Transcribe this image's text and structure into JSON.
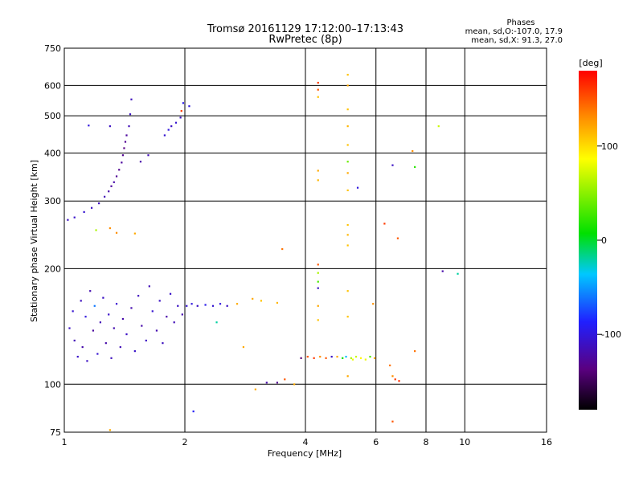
{
  "title_line1": "Tromsø 20161129 17:12:00–17:13:43",
  "title_line2": "RwPretec (8p)",
  "phases_box": {
    "heading": "Phases",
    "line_o": "mean, sd,O:-107.0, 17.9",
    "line_x": "mean, sd,X:  91.3, 27.0"
  },
  "colorbar": {
    "label": "[deg]",
    "min": -180,
    "max": 180,
    "ticks": [
      {
        "value": 100,
        "label": "100"
      },
      {
        "value": 0,
        "label": "0"
      },
      {
        "value": -100,
        "label": "-100"
      }
    ],
    "colormap": "rainbow black-purple-blue-cyan-green-yellow-red"
  },
  "chart_data": {
    "type": "scatter",
    "xlabel": "Frequency [MHz]",
    "ylabel": "Stationary phase Virtual Height [km]",
    "xscale": "log2",
    "yscale": "log",
    "xlim": [
      1,
      16
    ],
    "ylim": [
      75,
      750
    ],
    "xticks": [
      {
        "value": 1,
        "label": "1"
      },
      {
        "value": 2,
        "label": "2"
      },
      {
        "value": 4,
        "label": "4"
      },
      {
        "value": 6,
        "label": "6"
      },
      {
        "value": 8,
        "label": "8"
      },
      {
        "value": 10,
        "label": "10"
      },
      {
        "value": 16,
        "label": "16"
      }
    ],
    "yticks": [
      {
        "value": 75,
        "label": "75"
      },
      {
        "value": 100,
        "label": "100"
      },
      {
        "value": 200,
        "label": "200"
      },
      {
        "value": 300,
        "label": "300"
      },
      {
        "value": 400,
        "label": "400"
      },
      {
        "value": 500,
        "label": "500"
      },
      {
        "value": 600,
        "label": "600"
      },
      {
        "value": 750,
        "label": "750"
      }
    ],
    "grid": true,
    "point_color_encodes": "phase [deg]",
    "series": [
      {
        "values": [
          {
            "x": 1.02,
            "y": 268,
            "phase": -110
          },
          {
            "x": 1.06,
            "y": 272,
            "phase": -108
          },
          {
            "x": 1.12,
            "y": 281,
            "phase": -105
          },
          {
            "x": 1.17,
            "y": 288,
            "phase": -110
          },
          {
            "x": 1.22,
            "y": 296,
            "phase": -112
          },
          {
            "x": 1.26,
            "y": 308,
            "phase": -115
          },
          {
            "x": 1.29,
            "y": 318,
            "phase": -120
          },
          {
            "x": 1.31,
            "y": 328,
            "phase": -125
          },
          {
            "x": 1.33,
            "y": 336,
            "phase": -120
          },
          {
            "x": 1.35,
            "y": 348,
            "phase": -128
          },
          {
            "x": 1.37,
            "y": 362,
            "phase": -130
          },
          {
            "x": 1.39,
            "y": 378,
            "phase": -125
          },
          {
            "x": 1.4,
            "y": 395,
            "phase": -130
          },
          {
            "x": 1.41,
            "y": 412,
            "phase": -135
          },
          {
            "x": 1.42,
            "y": 428,
            "phase": -130
          },
          {
            "x": 1.43,
            "y": 445,
            "phase": -125
          },
          {
            "x": 1.45,
            "y": 470,
            "phase": -115
          },
          {
            "x": 1.46,
            "y": 505,
            "phase": -110
          },
          {
            "x": 1.47,
            "y": 552,
            "phase": -112
          },
          {
            "x": 1.15,
            "y": 472,
            "phase": -100
          },
          {
            "x": 1.3,
            "y": 470,
            "phase": -110
          },
          {
            "x": 1.55,
            "y": 380,
            "phase": -120
          },
          {
            "x": 1.62,
            "y": 395,
            "phase": -115
          },
          {
            "x": 1.78,
            "y": 445,
            "phase": -105
          },
          {
            "x": 1.82,
            "y": 460,
            "phase": -100
          },
          {
            "x": 1.85,
            "y": 470,
            "phase": -110
          },
          {
            "x": 1.9,
            "y": 480,
            "phase": -105
          },
          {
            "x": 1.95,
            "y": 495,
            "phase": -110
          },
          {
            "x": 1.98,
            "y": 540,
            "phase": -95
          },
          {
            "x": 2.05,
            "y": 530,
            "phase": -100
          },
          {
            "x": 1.96,
            "y": 515,
            "phase": 160
          },
          {
            "x": 1.03,
            "y": 140,
            "phase": -110
          },
          {
            "x": 1.05,
            "y": 155,
            "phase": -105
          },
          {
            "x": 1.06,
            "y": 130,
            "phase": -115
          },
          {
            "x": 1.08,
            "y": 118,
            "phase": -108
          },
          {
            "x": 1.1,
            "y": 165,
            "phase": -112
          },
          {
            "x": 1.11,
            "y": 125,
            "phase": -120
          },
          {
            "x": 1.13,
            "y": 150,
            "phase": -100
          },
          {
            "x": 1.14,
            "y": 115,
            "phase": -110
          },
          {
            "x": 1.16,
            "y": 175,
            "phase": -118
          },
          {
            "x": 1.18,
            "y": 138,
            "phase": -125
          },
          {
            "x": 1.19,
            "y": 160,
            "phase": -60
          },
          {
            "x": 1.21,
            "y": 120,
            "phase": -105
          },
          {
            "x": 1.23,
            "y": 145,
            "phase": -115
          },
          {
            "x": 1.25,
            "y": 168,
            "phase": -110
          },
          {
            "x": 1.27,
            "y": 128,
            "phase": -120
          },
          {
            "x": 1.29,
            "y": 152,
            "phase": -108
          },
          {
            "x": 1.31,
            "y": 117,
            "phase": -112
          },
          {
            "x": 1.33,
            "y": 140,
            "phase": -118
          },
          {
            "x": 1.35,
            "y": 162,
            "phase": -105
          },
          {
            "x": 1.38,
            "y": 125,
            "phase": -115
          },
          {
            "x": 1.4,
            "y": 148,
            "phase": -120
          },
          {
            "x": 1.43,
            "y": 135,
            "phase": -110
          },
          {
            "x": 1.47,
            "y": 158,
            "phase": -118
          },
          {
            "x": 1.5,
            "y": 122,
            "phase": -108
          },
          {
            "x": 1.53,
            "y": 170,
            "phase": -112
          },
          {
            "x": 1.56,
            "y": 142,
            "phase": -120
          },
          {
            "x": 1.6,
            "y": 130,
            "phase": -110
          },
          {
            "x": 1.63,
            "y": 180,
            "phase": -115
          },
          {
            "x": 1.66,
            "y": 155,
            "phase": -105
          },
          {
            "x": 1.7,
            "y": 138,
            "phase": -118
          },
          {
            "x": 1.73,
            "y": 165,
            "phase": -110
          },
          {
            "x": 1.76,
            "y": 128,
            "phase": -112
          },
          {
            "x": 1.8,
            "y": 150,
            "phase": -120
          },
          {
            "x": 1.84,
            "y": 172,
            "phase": -108
          },
          {
            "x": 1.88,
            "y": 145,
            "phase": -115
          },
          {
            "x": 1.92,
            "y": 160,
            "phase": -110
          },
          {
            "x": 1.97,
            "y": 152,
            "phase": -118
          },
          {
            "x": 2.02,
            "y": 160,
            "phase": -105
          },
          {
            "x": 2.08,
            "y": 162,
            "phase": -100
          },
          {
            "x": 2.15,
            "y": 160,
            "phase": -110
          },
          {
            "x": 2.25,
            "y": 161,
            "phase": -95
          },
          {
            "x": 2.35,
            "y": 160,
            "phase": -105
          },
          {
            "x": 2.45,
            "y": 162,
            "phase": -100
          },
          {
            "x": 2.4,
            "y": 145,
            "phase": -20
          },
          {
            "x": 2.55,
            "y": 160,
            "phase": -110
          },
          {
            "x": 2.7,
            "y": 162,
            "phase": 120
          },
          {
            "x": 2.95,
            "y": 167,
            "phase": 120
          },
          {
            "x": 3.1,
            "y": 165,
            "phase": 110
          },
          {
            "x": 3.4,
            "y": 163,
            "phase": 115
          },
          {
            "x": 2.8,
            "y": 125,
            "phase": 120
          },
          {
            "x": 3.5,
            "y": 225,
            "phase": 140
          },
          {
            "x": 2.1,
            "y": 85,
            "phase": -90
          },
          {
            "x": 3.0,
            "y": 97,
            "phase": 120
          },
          {
            "x": 3.2,
            "y": 101,
            "phase": -120
          },
          {
            "x": 3.4,
            "y": 101,
            "phase": -130
          },
          {
            "x": 3.55,
            "y": 103,
            "phase": 150
          },
          {
            "x": 3.75,
            "y": 100,
            "phase": 120
          },
          {
            "x": 1.3,
            "y": 76,
            "phase": 120
          },
          {
            "x": 1.2,
            "y": 252,
            "phase": 60
          },
          {
            "x": 1.3,
            "y": 255,
            "phase": 130
          },
          {
            "x": 1.35,
            "y": 248,
            "phase": 130
          },
          {
            "x": 1.5,
            "y": 247,
            "phase": 120
          },
          {
            "x": 4.3,
            "y": 610,
            "phase": 160
          },
          {
            "x": 4.3,
            "y": 585,
            "phase": 150
          },
          {
            "x": 4.3,
            "y": 560,
            "phase": 110
          },
          {
            "x": 4.3,
            "y": 360,
            "phase": 120
          },
          {
            "x": 4.3,
            "y": 340,
            "phase": 115
          },
          {
            "x": 4.3,
            "y": 205,
            "phase": 150
          },
          {
            "x": 4.3,
            "y": 195,
            "phase": 60
          },
          {
            "x": 4.3,
            "y": 185,
            "phase": 30
          },
          {
            "x": 4.3,
            "y": 178,
            "phase": -110
          },
          {
            "x": 4.3,
            "y": 160,
            "phase": 120
          },
          {
            "x": 4.3,
            "y": 147,
            "phase": 110
          },
          {
            "x": 3.9,
            "y": 117,
            "phase": -140
          },
          {
            "x": 4.05,
            "y": 118,
            "phase": 150
          },
          {
            "x": 4.2,
            "y": 117,
            "phase": 160
          },
          {
            "x": 4.35,
            "y": 118,
            "phase": 130
          },
          {
            "x": 4.5,
            "y": 117,
            "phase": 150
          },
          {
            "x": 4.65,
            "y": 118,
            "phase": -110
          },
          {
            "x": 4.8,
            "y": 118,
            "phase": 120
          },
          {
            "x": 4.95,
            "y": 117,
            "phase": 10
          },
          {
            "x": 5.05,
            "y": 118,
            "phase": -40
          },
          {
            "x": 5.2,
            "y": 117,
            "phase": 60
          },
          {
            "x": 5.35,
            "y": 118,
            "phase": 70
          },
          {
            "x": 5.5,
            "y": 117,
            "phase": 90
          },
          {
            "x": 5.65,
            "y": 116,
            "phase": 80
          },
          {
            "x": 5.8,
            "y": 118,
            "phase": 30
          },
          {
            "x": 5.95,
            "y": 117,
            "phase": 120
          },
          {
            "x": 5.25,
            "y": 116,
            "phase": 80
          },
          {
            "x": 5.1,
            "y": 640,
            "phase": 110
          },
          {
            "x": 5.1,
            "y": 600,
            "phase": 120
          },
          {
            "x": 5.1,
            "y": 520,
            "phase": 110
          },
          {
            "x": 5.1,
            "y": 470,
            "phase": 115
          },
          {
            "x": 5.1,
            "y": 420,
            "phase": 110
          },
          {
            "x": 5.1,
            "y": 380,
            "phase": 40
          },
          {
            "x": 5.1,
            "y": 355,
            "phase": 120
          },
          {
            "x": 5.1,
            "y": 320,
            "phase": 110
          },
          {
            "x": 5.1,
            "y": 260,
            "phase": 110
          },
          {
            "x": 5.1,
            "y": 245,
            "phase": 115
          },
          {
            "x": 5.1,
            "y": 230,
            "phase": 110
          },
          {
            "x": 5.1,
            "y": 175,
            "phase": 110
          },
          {
            "x": 5.1,
            "y": 150,
            "phase": 110
          },
          {
            "x": 5.1,
            "y": 105,
            "phase": 120
          },
          {
            "x": 5.4,
            "y": 325,
            "phase": -100
          },
          {
            "x": 5.9,
            "y": 162,
            "phase": 130
          },
          {
            "x": 6.3,
            "y": 262,
            "phase": 160
          },
          {
            "x": 6.6,
            "y": 372,
            "phase": -110
          },
          {
            "x": 6.8,
            "y": 240,
            "phase": 150
          },
          {
            "x": 6.5,
            "y": 112,
            "phase": 140
          },
          {
            "x": 6.6,
            "y": 105,
            "phase": 130
          },
          {
            "x": 6.7,
            "y": 103,
            "phase": 160
          },
          {
            "x": 6.85,
            "y": 102,
            "phase": 165
          },
          {
            "x": 6.6,
            "y": 80,
            "phase": 150
          },
          {
            "x": 7.4,
            "y": 405,
            "phase": 130
          },
          {
            "x": 7.5,
            "y": 368,
            "phase": 20
          },
          {
            "x": 7.5,
            "y": 122,
            "phase": 140
          },
          {
            "x": 8.6,
            "y": 470,
            "phase": 70
          },
          {
            "x": 8.8,
            "y": 197,
            "phase": -120
          },
          {
            "x": 9.6,
            "y": 194,
            "phase": -20
          }
        ]
      }
    ]
  }
}
